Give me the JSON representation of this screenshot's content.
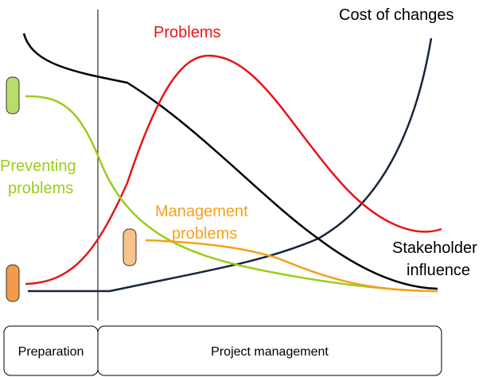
{
  "labels": {
    "cost": "Cost of changes",
    "problems": "Problems",
    "preventing": [
      "Preventing",
      "problems"
    ],
    "management": [
      "Management",
      "problems"
    ],
    "stakeholder": [
      "Stakeholder",
      "influence"
    ]
  },
  "phases": [
    "Preparation",
    "Project management"
  ]
}
